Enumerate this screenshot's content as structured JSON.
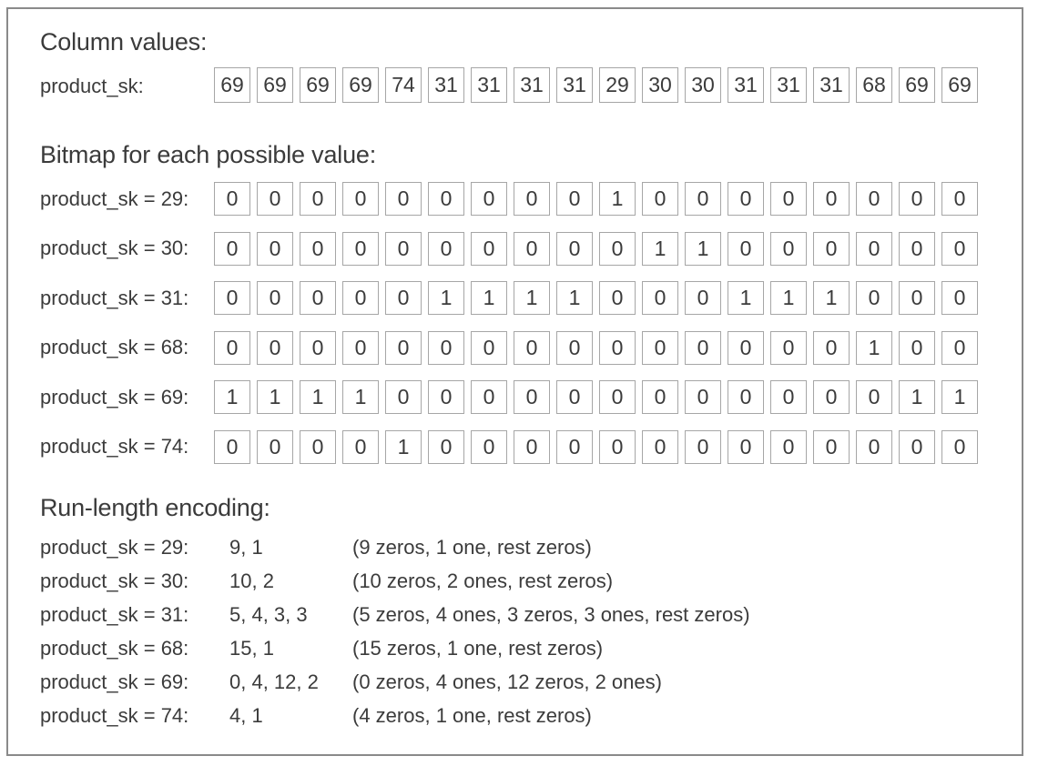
{
  "colors": {
    "text": "#3b3b3b",
    "cell_border": "#a6a6a6",
    "frame_border": "#8a8a8a",
    "background": "#ffffff"
  },
  "sections": {
    "column_values": {
      "title": "Column values:",
      "row_label": "product_sk:"
    },
    "bitmaps": {
      "title": "Bitmap for each possible value:"
    },
    "rle": {
      "title": "Run-length encoding:"
    }
  },
  "column_values": [
    69,
    69,
    69,
    69,
    74,
    31,
    31,
    31,
    31,
    29,
    30,
    30,
    31,
    31,
    31,
    68,
    69,
    69
  ],
  "bitmap_rows": [
    {
      "label": "product_sk = 29:",
      "bits": [
        0,
        0,
        0,
        0,
        0,
        0,
        0,
        0,
        0,
        1,
        0,
        0,
        0,
        0,
        0,
        0,
        0,
        0
      ]
    },
    {
      "label": "product_sk = 30:",
      "bits": [
        0,
        0,
        0,
        0,
        0,
        0,
        0,
        0,
        0,
        0,
        1,
        1,
        0,
        0,
        0,
        0,
        0,
        0
      ]
    },
    {
      "label": "product_sk = 31:",
      "bits": [
        0,
        0,
        0,
        0,
        0,
        1,
        1,
        1,
        1,
        0,
        0,
        0,
        1,
        1,
        1,
        0,
        0,
        0
      ]
    },
    {
      "label": "product_sk = 68:",
      "bits": [
        0,
        0,
        0,
        0,
        0,
        0,
        0,
        0,
        0,
        0,
        0,
        0,
        0,
        0,
        0,
        1,
        0,
        0
      ]
    },
    {
      "label": "product_sk = 69:",
      "bits": [
        1,
        1,
        1,
        1,
        0,
        0,
        0,
        0,
        0,
        0,
        0,
        0,
        0,
        0,
        0,
        0,
        1,
        1
      ]
    },
    {
      "label": "product_sk = 74:",
      "bits": [
        0,
        0,
        0,
        0,
        1,
        0,
        0,
        0,
        0,
        0,
        0,
        0,
        0,
        0,
        0,
        0,
        0,
        0
      ]
    }
  ],
  "rle_rows": [
    {
      "label": "product_sk = 29:",
      "values": "9, 1",
      "annotation": "(9 zeros, 1 one, rest zeros)"
    },
    {
      "label": "product_sk = 30:",
      "values": "10, 2",
      "annotation": "(10 zeros, 2 ones, rest zeros)"
    },
    {
      "label": "product_sk = 31:",
      "values": "5, 4, 3, 3",
      "annotation": "(5 zeros, 4 ones, 3 zeros, 3 ones, rest zeros)"
    },
    {
      "label": "product_sk = 68:",
      "values": "15, 1",
      "annotation": "(15 zeros, 1 one, rest zeros)"
    },
    {
      "label": "product_sk = 69:",
      "values": "0, 4, 12, 2",
      "annotation": "(0 zeros, 4 ones, 12 zeros, 2 ones)"
    },
    {
      "label": "product_sk = 74:",
      "values": "4, 1",
      "annotation": "(4 zeros, 1 one, rest zeros)"
    }
  ]
}
